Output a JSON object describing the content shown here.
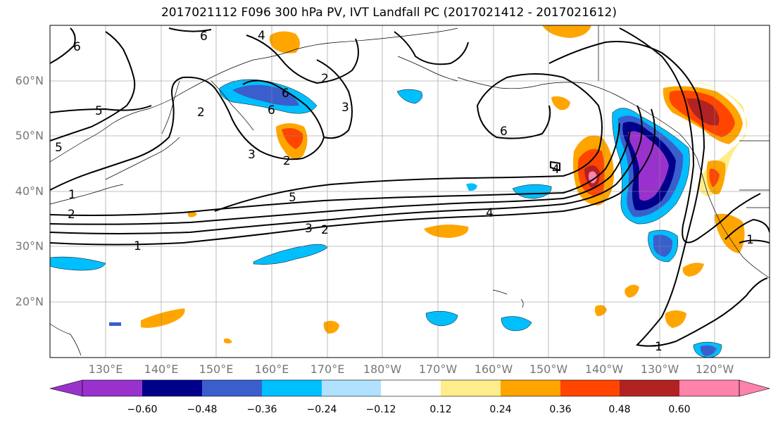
{
  "title": "2017021112 F096 300 hPa PV, IVT Landfall PC (2017021412 - 2017021612)",
  "lat_labels": [
    "60°N",
    "50°N",
    "40°N",
    "30°N",
    "20°N"
  ],
  "lon_labels": [
    "130°E",
    "140°E",
    "150°E",
    "160°E",
    "170°E",
    "180°W",
    "170°W",
    "160°W",
    "150°W",
    "140°W",
    "130°W",
    "120°W"
  ],
  "colorbar": {
    "colors": [
      "#9932CC",
      "#00008B",
      "#3A5FCD",
      "#00BFFF",
      "#B0E2FF",
      "#FFFFFF",
      "#FFEC8B",
      "#FFA500",
      "#FF4500",
      "#B22222",
      "#FF82AB"
    ],
    "ticks": [
      "−0.60",
      "−0.48",
      "−0.36",
      "−0.24",
      "−0.12",
      "0.12",
      "0.24",
      "0.36",
      "0.48",
      "0.60"
    ]
  },
  "contour_labels": [
    "6",
    "6",
    "4",
    "5",
    "5",
    "2",
    "1",
    "2",
    "1",
    "6",
    "6",
    "3",
    "3",
    "2",
    "2",
    "5",
    "4",
    "3",
    "2",
    "1",
    "4",
    "6",
    "1"
  ]
}
